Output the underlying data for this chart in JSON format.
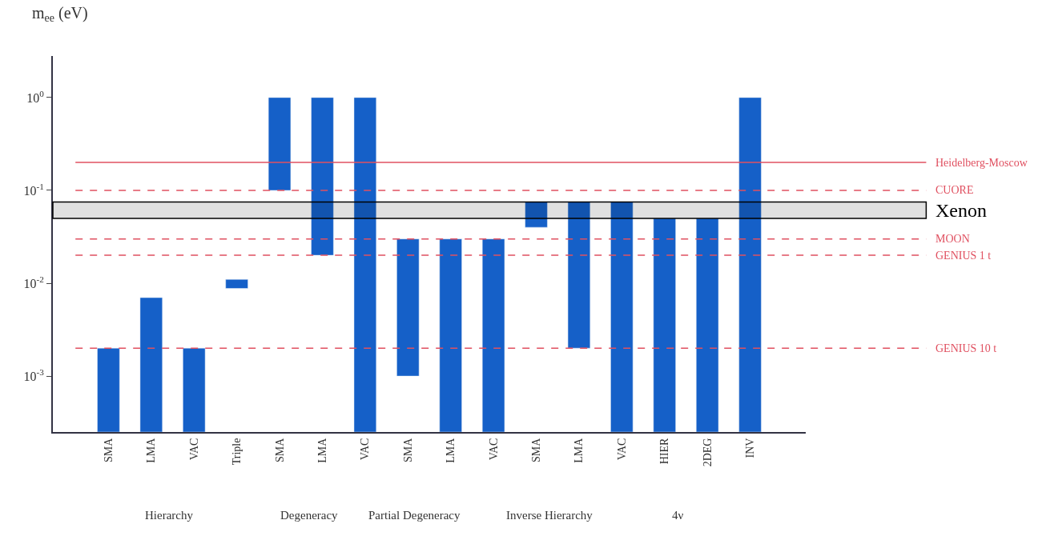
{
  "chart_data": {
    "type": "bar",
    "ylabel": "m$_{ee}$ (eV)",
    "categories": [
      "SMA",
      "LMA",
      "VAC",
      "Triple",
      "SMA",
      "LMA",
      "VAC",
      "SMA",
      "LMA",
      "VAC",
      "SMA",
      "LMA",
      "VAC",
      "HIER",
      "2DEG",
      "INV"
    ],
    "base": [
      0.00025,
      0.00025,
      0.00025,
      0.0088,
      0.1,
      0.02,
      0.00025,
      0.001,
      0.00025,
      0.00025,
      0.04,
      0.002,
      0.00025,
      0.00025,
      0.00025,
      0.00025
    ],
    "values": [
      0.00175,
      0.00675,
      0.00175,
      0.0022,
      0.9,
      0.98,
      0.99975,
      0.029,
      0.02975,
      0.02975,
      0.035,
      0.073,
      0.07475,
      0.04975,
      0.04975,
      0.99975
    ],
    "color": "#1560c8",
    "log": "y",
    "ylim": [
      0.00025,
      2.8
    ],
    "yticks": [
      {
        "value": 0.001,
        "label": "10$^{-3}$"
      },
      {
        "value": 0.01,
        "label": "10$^{-2}$"
      },
      {
        "value": 0.1,
        "label": "10$^{-1}$"
      },
      {
        "value": 1,
        "label": "10$^{0}$"
      }
    ],
    "ref_lines": [
      {
        "axis": "y",
        "value": 0.2,
        "label": "Heidelberg-Moscow",
        "color": "#e05060",
        "line_style": "solid"
      },
      {
        "axis": "y",
        "value": 0.1,
        "label": "CUORE",
        "color": "#e05060",
        "line_style": "dashed"
      },
      {
        "axis": "y",
        "value": 0.03,
        "label": "MOON",
        "color": "#e05060",
        "line_style": "dashed"
      },
      {
        "axis": "y",
        "value": 0.02,
        "label": "GENIUS 1 t",
        "color": "#e05060",
        "line_style": "dashed"
      },
      {
        "axis": "y",
        "value": 0.002,
        "label": "GENIUS 10 t",
        "color": "#e05060",
        "line_style": "dashed"
      }
    ],
    "bands": [
      {
        "axis": "y",
        "from": 0.05,
        "to": 0.075,
        "label": "Xenon",
        "color": "#000000"
      }
    ],
    "annotations": [
      "Hierarchy",
      "Degeneracy",
      "Partial Degeneracy",
      "Inverse Hierarchy",
      "4ν"
    ]
  }
}
